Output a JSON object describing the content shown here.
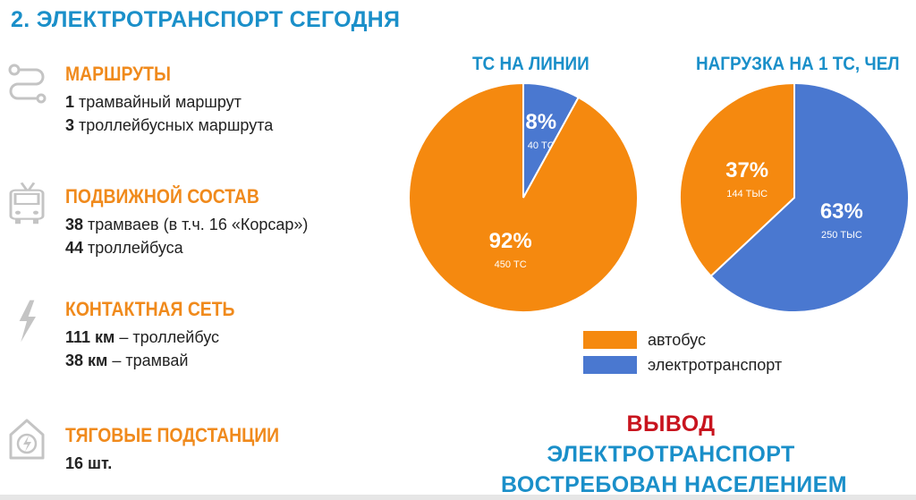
{
  "page": {
    "title": "2. ЭЛЕКТРОТРАНСПОРТ СЕГОДНЯ"
  },
  "sections": [
    {
      "icon": "route-icon",
      "heading": "МАРШРУТЫ",
      "lines": [
        {
          "bold": "1",
          "text": " трамвайный маршрут"
        },
        {
          "bold": "3",
          "text": " троллейбусных маршрута"
        }
      ]
    },
    {
      "icon": "trolleybus-icon",
      "heading": "ПОДВИЖНОЙ СОСТАВ",
      "lines": [
        {
          "bold": "38",
          "text": " трамваев (в т.ч. 16 «Корсар»)"
        },
        {
          "bold": "44",
          "text": " троллейбуса"
        }
      ]
    },
    {
      "icon": "lightning-icon",
      "heading": "КОНТАКТНАЯ СЕТЬ",
      "lines": [
        {
          "bold": "111 км",
          "text": " – троллейбус"
        },
        {
          "bold": "38 км",
          "text": " – трамвай"
        }
      ]
    },
    {
      "icon": "substation-icon",
      "heading": "ТЯГОВЫЕ ПОДСТАНЦИИ",
      "lines": [
        {
          "bold": "16 шт.",
          "text": ""
        }
      ]
    }
  ],
  "chart_data": [
    {
      "type": "pie",
      "title": "ТС НА ЛИНИИ",
      "slices": [
        {
          "name": "электротранспорт",
          "percent": 8,
          "label": "8%",
          "sublabel": "40 ТС",
          "value": 40,
          "color": "#4a78d0"
        },
        {
          "name": "автобус",
          "percent": 92,
          "label": "92%",
          "sublabel": "450 ТС",
          "value": 450,
          "color": "#f5890f"
        }
      ]
    },
    {
      "type": "pie",
      "title": "НАГРУЗКА НА 1 ТС, ЧЕЛ",
      "slices": [
        {
          "name": "электротранспорт",
          "percent": 63,
          "label": "63%",
          "sublabel": "250 ТЫС",
          "value": 250,
          "color": "#4a78d0"
        },
        {
          "name": "автобус",
          "percent": 37,
          "label": "37%",
          "sublabel": "144 ТЫС",
          "value": 144,
          "color": "#f5890f"
        }
      ]
    }
  ],
  "legend": [
    {
      "label": "автобус",
      "color": "#f5890f"
    },
    {
      "label": "электротранспорт",
      "color": "#4a78d0"
    }
  ],
  "conclusion": {
    "line1": "ВЫВОД",
    "line1_color": "#c8141e",
    "line2": "ЭЛЕКТРОТРАНСПОРТ",
    "line3": "ВОСТРЕБОВАН НАСЕЛЕНИЕМ",
    "color": "#1a8fc9"
  }
}
